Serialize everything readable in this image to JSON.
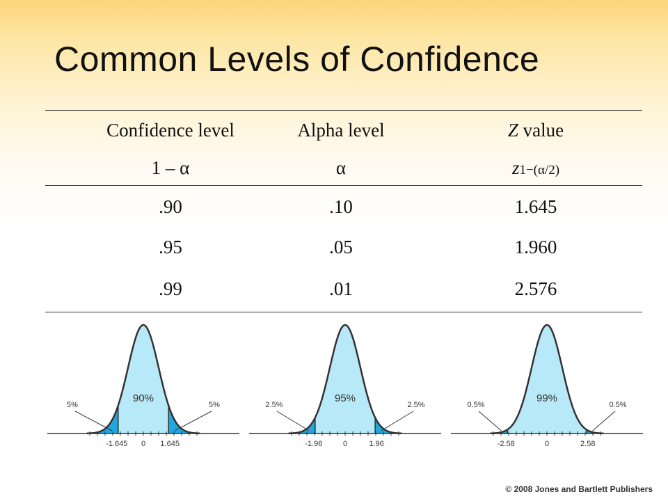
{
  "title": "Common Levels of Confidence",
  "table": {
    "headers": [
      {
        "line1": "Confidence level",
        "line2": "1 – α"
      },
      {
        "line1": "Alpha level",
        "line2": "α"
      },
      {
        "line1_italic": "Z",
        "line1_rest": " value",
        "line2_main": "z",
        "line2_sub": "1−(α/2)"
      }
    ],
    "rows": [
      {
        "confidence": ".90",
        "alpha": ".10",
        "z": "1.645"
      },
      {
        "confidence": ".95",
        "alpha": ".05",
        "z": "1.960"
      },
      {
        "confidence": ".99",
        "alpha": ".01",
        "z": "2.576"
      }
    ]
  },
  "curves": [
    {
      "center_label": "90%",
      "tail_label": "5%",
      "z": 1.645,
      "left_tick": "-1.645",
      "zero_tick": "0",
      "right_tick": "1.645"
    },
    {
      "center_label": "95%",
      "tail_label": "2.5%",
      "z": 1.96,
      "left_tick": "-1.96",
      "zero_tick": "0",
      "right_tick": "1.96"
    },
    {
      "center_label": "99%",
      "tail_label": "0.5%",
      "z": 2.58,
      "left_tick": "-2.58",
      "zero_tick": "0",
      "right_tick": "2.58"
    }
  ],
  "colors": {
    "center_fill": "#b8e9f8",
    "tail_fill": "#1fa8e0",
    "outline": "#333333"
  },
  "footer": "© 2008 Jones and Bartlett Publishers"
}
